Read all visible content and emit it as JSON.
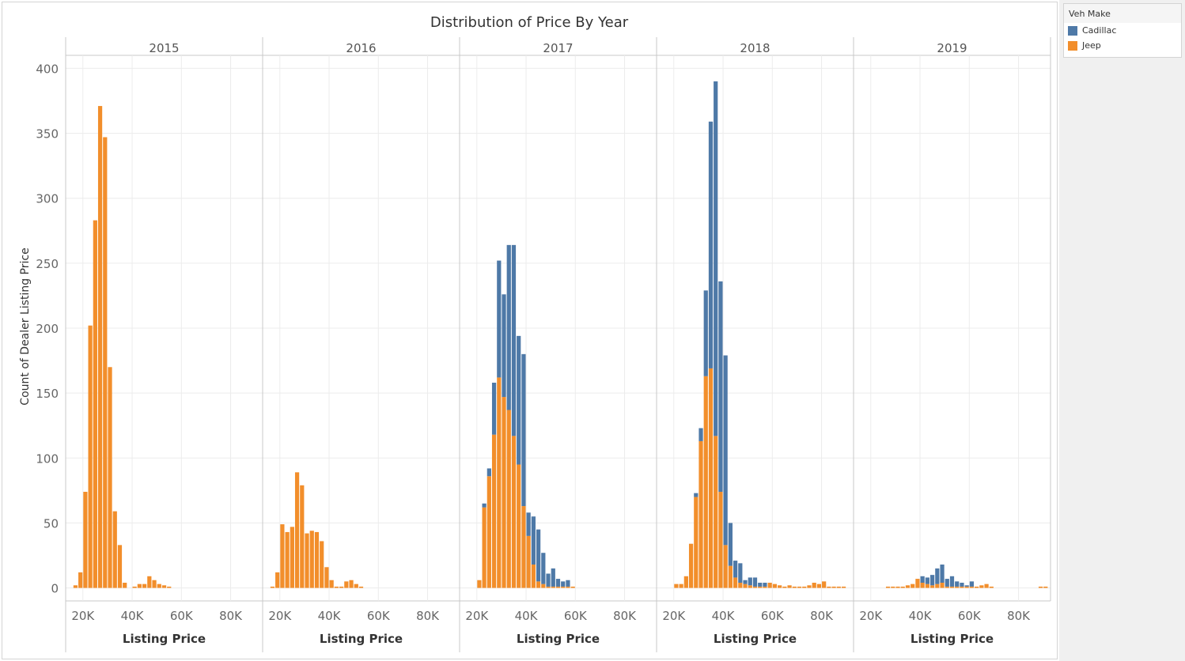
{
  "chart_data": {
    "type": "bar",
    "stacked": true,
    "title": "Distribution of Price By Year",
    "ylabel": "Count of Dealer Listing Price",
    "xlabel": "Listing Price",
    "ylim": [
      -10,
      410
    ],
    "yticks": [
      0,
      50,
      100,
      150,
      200,
      250,
      300,
      350,
      400
    ],
    "xlim": [
      13000,
      93000
    ],
    "xticks": [
      20000,
      40000,
      60000,
      80000
    ],
    "xtick_labels": [
      "20K",
      "40K",
      "60K",
      "80K"
    ],
    "bin_width": 2000,
    "grid": true,
    "legend_position": "top-right",
    "legend": {
      "title": "Veh Make",
      "entries": [
        {
          "name": "Cadillac",
          "color": "#4e79a7"
        },
        {
          "name": "Jeep",
          "color": "#f28e2b"
        }
      ]
    },
    "panels": [
      {
        "label": "2015",
        "series": [
          {
            "name": "Jeep",
            "x": [
              17000,
              19000,
              21000,
              23000,
              25000,
              27000,
              29000,
              31000,
              33000,
              35000,
              37000,
              41000,
              43000,
              45000,
              47000,
              49000,
              51000,
              53000,
              55000
            ],
            "values": [
              2,
              12,
              74,
              202,
              283,
              371,
              347,
              170,
              59,
              33,
              4,
              1,
              3,
              3,
              9,
              6,
              3,
              2,
              1
            ]
          },
          {
            "name": "Cadillac",
            "x": [],
            "values": []
          }
        ]
      },
      {
        "label": "2016",
        "series": [
          {
            "name": "Jeep",
            "x": [
              17000,
              19000,
              21000,
              23000,
              25000,
              27000,
              29000,
              31000,
              33000,
              35000,
              37000,
              39000,
              41000,
              43000,
              45000,
              47000,
              49000,
              51000,
              53000
            ],
            "values": [
              1,
              12,
              49,
              43,
              47,
              89,
              79,
              42,
              44,
              43,
              36,
              16,
              6,
              1,
              1,
              5,
              6,
              3,
              1
            ]
          },
          {
            "name": "Cadillac",
            "x": [],
            "values": []
          }
        ]
      },
      {
        "label": "2017",
        "series": [
          {
            "name": "Jeep",
            "x": [
              21000,
              23000,
              25000,
              27000,
              29000,
              31000,
              33000,
              35000,
              37000,
              39000,
              41000,
              43000,
              45000,
              47000,
              49000,
              51000,
              53000,
              55000,
              57000,
              59000
            ],
            "values": [
              6,
              62,
              86,
              118,
              162,
              147,
              137,
              117,
              95,
              63,
              40,
              18,
              5,
              3,
              1,
              1,
              1,
              1,
              1,
              1
            ]
          },
          {
            "name": "Cadillac",
            "x": [
              21000,
              23000,
              25000,
              27000,
              29000,
              31000,
              33000,
              35000,
              37000,
              39000,
              41000,
              43000,
              45000,
              47000,
              49000,
              51000,
              53000,
              55000,
              57000,
              59000
            ],
            "values": [
              0,
              3,
              6,
              40,
              90,
              79,
              127,
              147,
              99,
              117,
              18,
              37,
              40,
              24,
              10,
              14,
              6,
              4,
              5,
              0
            ]
          }
        ]
      },
      {
        "label": "2018",
        "series": [
          {
            "name": "Jeep",
            "x": [
              21000,
              23000,
              25000,
              27000,
              29000,
              31000,
              33000,
              35000,
              37000,
              39000,
              41000,
              43000,
              45000,
              47000,
              49000,
              51000,
              53000,
              55000,
              57000,
              59000,
              61000,
              63000,
              65000,
              67000,
              69000,
              71000,
              73000,
              75000,
              77000,
              79000,
              81000,
              83000,
              85000,
              87000,
              89000
            ],
            "values": [
              3,
              3,
              9,
              34,
              70,
              113,
              163,
              169,
              117,
              74,
              33,
              17,
              8,
              4,
              3,
              2,
              1,
              1,
              1,
              4,
              3,
              2,
              1,
              2,
              1,
              1,
              1,
              2,
              4,
              3,
              5,
              1,
              1,
              1,
              1
            ]
          },
          {
            "name": "Cadillac",
            "x": [
              21000,
              23000,
              25000,
              27000,
              29000,
              31000,
              33000,
              35000,
              37000,
              39000,
              41000,
              43000,
              45000,
              47000,
              49000,
              51000,
              53000,
              55000,
              57000,
              59000
            ],
            "values": [
              0,
              0,
              0,
              0,
              3,
              10,
              66,
              190,
              273,
              162,
              146,
              33,
              13,
              15,
              3,
              6,
              7,
              3,
              3,
              0
            ]
          }
        ]
      },
      {
        "label": "2019",
        "series": [
          {
            "name": "Jeep",
            "x": [
              27000,
              29000,
              31000,
              33000,
              35000,
              37000,
              39000,
              41000,
              43000,
              45000,
              47000,
              49000,
              51000,
              53000,
              55000,
              57000,
              59000,
              61000,
              63000,
              65000,
              67000,
              69000,
              89000,
              91000
            ],
            "values": [
              1,
              1,
              1,
              1,
              2,
              3,
              7,
              4,
              3,
              2,
              3,
              4,
              1,
              1,
              1,
              1,
              1,
              1,
              1,
              2,
              3,
              1,
              1,
              1
            ]
          },
          {
            "name": "Cadillac",
            "x": [
              37000,
              39000,
              41000,
              43000,
              45000,
              47000,
              49000,
              51000,
              53000,
              55000,
              57000,
              59000,
              61000
            ],
            "values": [
              0,
              0,
              5,
              5,
              8,
              12,
              14,
              6,
              8,
              4,
              3,
              1,
              4
            ]
          }
        ]
      }
    ]
  }
}
